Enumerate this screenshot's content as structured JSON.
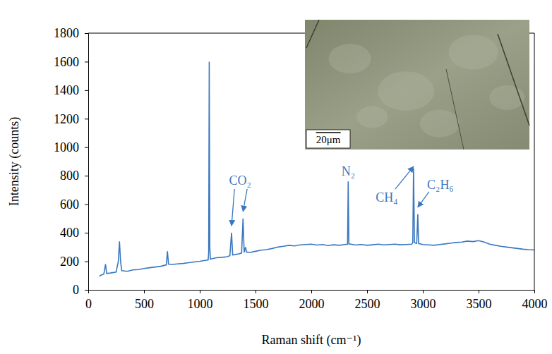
{
  "chart_data": {
    "type": "line",
    "x_label": "Raman shift (cm⁻¹)",
    "y_label": "Intensity (counts)",
    "color": "#3b78c0",
    "xlim": [
      0,
      4000
    ],
    "xticks": [
      0,
      500,
      1000,
      1500,
      2000,
      2500,
      3000,
      3500,
      4000
    ],
    "ylim": [
      0,
      1800
    ],
    "yticks": [
      0,
      200,
      400,
      600,
      800,
      1000,
      1200,
      1400,
      1600,
      1800
    ],
    "grid": false,
    "x": [
      100,
      120,
      140,
      155,
      165,
      200,
      250,
      270,
      280,
      290,
      300,
      350,
      400,
      450,
      500,
      550,
      600,
      650,
      700,
      710,
      720,
      750,
      800,
      850,
      900,
      950,
      1000,
      1040,
      1075,
      1080,
      1085,
      1090,
      1095,
      1120,
      1150,
      1200,
      1250,
      1270,
      1285,
      1295,
      1320,
      1350,
      1375,
      1388,
      1398,
      1410,
      1420,
      1450,
      1500,
      1550,
      1600,
      1650,
      1700,
      1750,
      1800,
      1850,
      1900,
      1950,
      2000,
      2050,
      2100,
      2150,
      2200,
      2250,
      2300,
      2325,
      2331,
      2337,
      2400,
      2450,
      2500,
      2550,
      2600,
      2650,
      2700,
      2750,
      2800,
      2850,
      2900,
      2910,
      2917,
      2925,
      2945,
      2955,
      2962,
      3000,
      3050,
      3100,
      3150,
      3200,
      3250,
      3300,
      3350,
      3400,
      3450,
      3500,
      3550,
      3600,
      3650,
      3700,
      3750,
      3800,
      3850,
      3900,
      3950,
      4000
    ],
    "values": [
      95,
      105,
      110,
      180,
      115,
      118,
      125,
      200,
      340,
      200,
      135,
      130,
      140,
      142,
      150,
      155,
      160,
      165,
      175,
      270,
      180,
      178,
      182,
      185,
      190,
      195,
      200,
      205,
      210,
      260,
      1600,
      300,
      215,
      220,
      225,
      228,
      232,
      240,
      400,
      245,
      248,
      252,
      258,
      500,
      262,
      300,
      265,
      262,
      270,
      278,
      282,
      290,
      300,
      305,
      312,
      308,
      315,
      318,
      320,
      314,
      318,
      310,
      316,
      312,
      318,
      320,
      760,
      322,
      314,
      318,
      312,
      316,
      320,
      315,
      318,
      320,
      316,
      318,
      320,
      330,
      850,
      330,
      325,
      530,
      325,
      318,
      315,
      312,
      318,
      322,
      328,
      332,
      335,
      342,
      338,
      345,
      335,
      320,
      312,
      305,
      300,
      295,
      290,
      285,
      282,
      280
    ],
    "annotations": [
      {
        "text": "CO₂",
        "points": [
          [
            1285,
            400
          ],
          [
            1388,
            500
          ]
        ]
      },
      {
        "text": "N₂",
        "points": [
          [
            2331,
            760
          ]
        ]
      },
      {
        "text": "CH₄",
        "points": [
          [
            2917,
            850
          ]
        ]
      },
      {
        "text": "C₂H₆",
        "points": [
          [
            2955,
            530
          ]
        ]
      }
    ],
    "inset": {
      "scale_bar_label": "20μm"
    }
  }
}
